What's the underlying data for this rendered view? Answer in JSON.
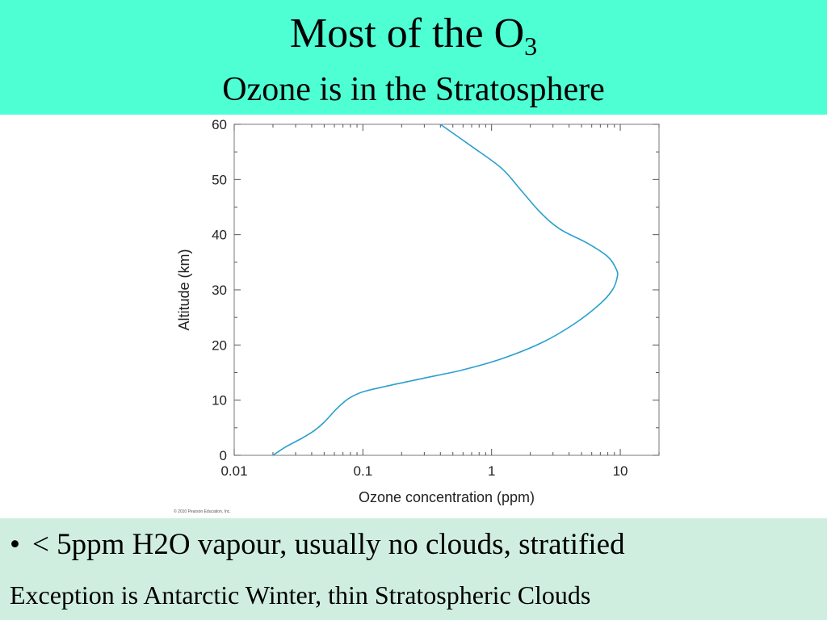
{
  "slide": {
    "title_main": "Most of the O",
    "title_sub": "3",
    "subtitle": "Ozone is in the Stratosphere",
    "bullet_symbol": "•",
    "bullet_text": "< 5ppm H2O vapour, usually no clouds, stratified",
    "note_text": "Exception is Antarctic Winter, thin Stratospheric Clouds",
    "colors": {
      "header_bg": "#4effd4",
      "footer_bg": "#cfeee0",
      "curve": "#2a9fcf"
    }
  },
  "chart_data": {
    "type": "line",
    "xlabel": "Ozone concentration (ppm)",
    "ylabel": "Altitude (km)",
    "x_scale": "log",
    "xlim": [
      0.01,
      20
    ],
    "ylim": [
      0,
      60
    ],
    "x_ticks": [
      0.01,
      0.1,
      1,
      10
    ],
    "x_tick_labels": [
      "0.01",
      "0.1",
      "1",
      "10"
    ],
    "y_ticks": [
      0,
      10,
      20,
      30,
      40,
      50,
      60
    ],
    "y_tick_labels": [
      "0",
      "10",
      "20",
      "30",
      "40",
      "50",
      "60"
    ],
    "grid": false,
    "copyright": "© 2010 Pearson Education, Inc.",
    "series": [
      {
        "x": [
          0.02,
          0.025,
          0.033,
          0.042,
          0.05,
          0.06,
          0.07,
          0.08,
          0.1,
          0.15,
          0.3,
          0.6,
          1.2,
          2.5,
          4.5,
          7.0,
          8.7,
          9.4,
          9.4,
          8.0,
          5.5,
          3.4,
          2.4,
          1.7,
          1.2,
          0.7,
          0.4
        ],
        "y": [
          0,
          1.5,
          3,
          4.5,
          6,
          8,
          9.5,
          10.5,
          11.5,
          12.5,
          14,
          15.5,
          17.5,
          20.5,
          24,
          27.5,
          30,
          32,
          33.5,
          36,
          38.5,
          41,
          44,
          48,
          52,
          56,
          60
        ]
      }
    ]
  }
}
